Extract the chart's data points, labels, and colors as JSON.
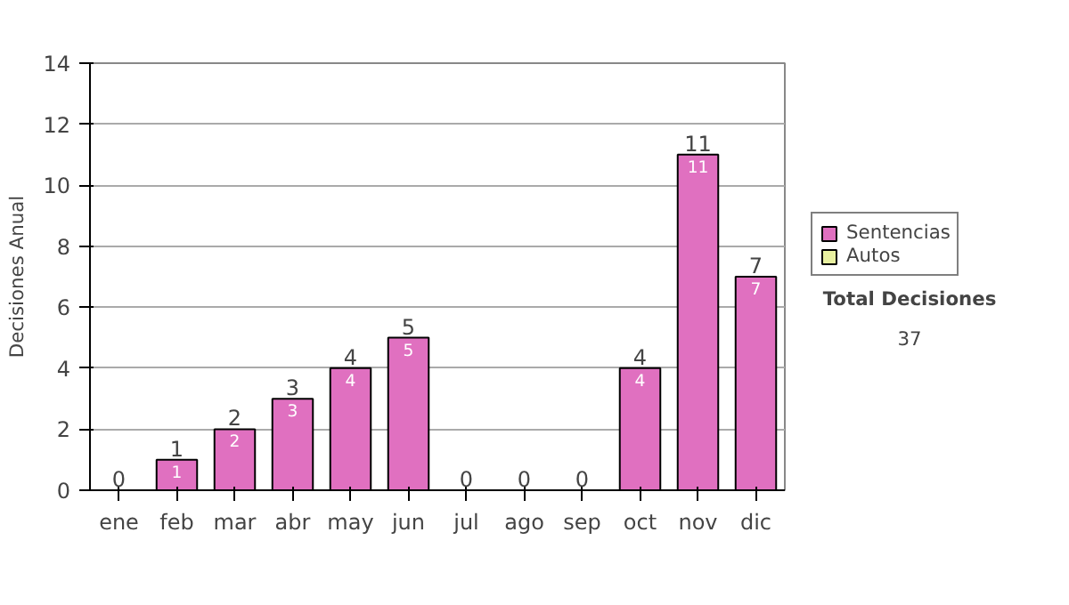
{
  "chart_data": {
    "type": "bar",
    "stacked": true,
    "ylabel": "Decisiones Anual",
    "categories": [
      "ene",
      "feb",
      "mar",
      "abr",
      "may",
      "jun",
      "jul",
      "ago",
      "sep",
      "oct",
      "nov",
      "dic"
    ],
    "series": [
      {
        "name": "Sentencias",
        "color": "#e070c0",
        "values": [
          0,
          1,
          2,
          3,
          4,
          5,
          0,
          0,
          0,
          4,
          11,
          7
        ],
        "value_labels": [
          null,
          "1",
          "2",
          "3",
          "4",
          "5",
          null,
          null,
          null,
          "4",
          "11",
          "7"
        ]
      },
      {
        "name": "Autos",
        "color": "#e8f0a0",
        "values": [
          0,
          0,
          0,
          0,
          0,
          0,
          0,
          0,
          0,
          0,
          0,
          0
        ]
      }
    ],
    "totals": [
      "0",
      "1",
      "2",
      "3",
      "4",
      "5",
      "0",
      "0",
      "0",
      "4",
      "11",
      "7"
    ],
    "ylim": [
      0,
      14
    ],
    "yticks": [
      0,
      2,
      4,
      6,
      8,
      10,
      12,
      14
    ],
    "grid": "y",
    "legend": "right",
    "annotations": [
      "Total Decisiones",
      "37"
    ]
  }
}
